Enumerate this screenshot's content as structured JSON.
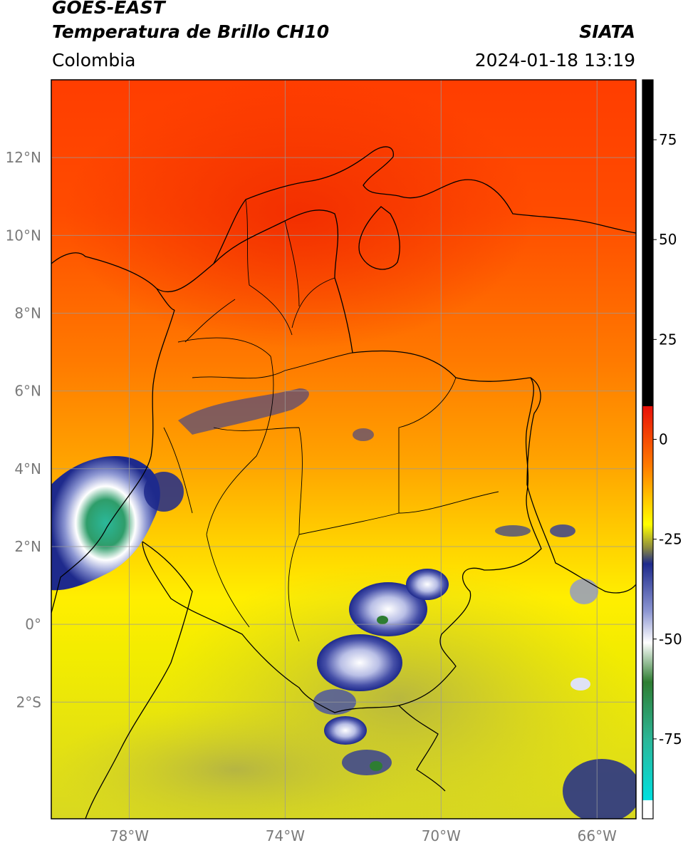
{
  "header": {
    "line1": "GOES-EAST",
    "line2": "Temperatura de Brillo CH10",
    "org": "SIATA",
    "region": "Colombia",
    "timestamp": "2024-01-18 13:19"
  },
  "map": {
    "extent": {
      "lon_min": -80,
      "lon_max": -65,
      "lat_min": -5,
      "lat_max": 14
    },
    "lat_ticks": [
      {
        "value": 12,
        "label": "12°N"
      },
      {
        "value": 10,
        "label": "10°N"
      },
      {
        "value": 8,
        "label": "8°N"
      },
      {
        "value": 6,
        "label": "6°N"
      },
      {
        "value": 4,
        "label": "4°N"
      },
      {
        "value": 2,
        "label": "2°N"
      },
      {
        "value": 0,
        "label": "0°"
      },
      {
        "value": -2,
        "label": "2°S"
      }
    ],
    "lon_ticks": [
      {
        "value": -78,
        "label": "78°W"
      },
      {
        "value": -74,
        "label": "74°W"
      },
      {
        "value": -70,
        "label": "70°W"
      },
      {
        "value": -66,
        "label": "66°W"
      }
    ]
  },
  "colorbar": {
    "range": [
      -95,
      90
    ],
    "ticks": [
      {
        "value": 75,
        "label": "75"
      },
      {
        "value": 50,
        "label": "50"
      },
      {
        "value": 25,
        "label": "25"
      },
      {
        "value": 0,
        "label": "0"
      },
      {
        "value": -25,
        "label": "-25"
      },
      {
        "value": -50,
        "label": "-50"
      },
      {
        "value": -75,
        "label": "-75"
      }
    ],
    "colors": {
      "above_8": "#000000",
      "c8": "#e8100a",
      "c0": "#ff7a00",
      "cm15": "#ffff00",
      "cm22": "#8a8a40",
      "cm25": "#1e2a8c",
      "cm35": "#8c96d2",
      "cm48": "#ffffff",
      "cm60": "#2e7d32",
      "cm78": "#2bb89a",
      "cm90": "#00e0e0",
      "below": "#ffffff"
    }
  }
}
